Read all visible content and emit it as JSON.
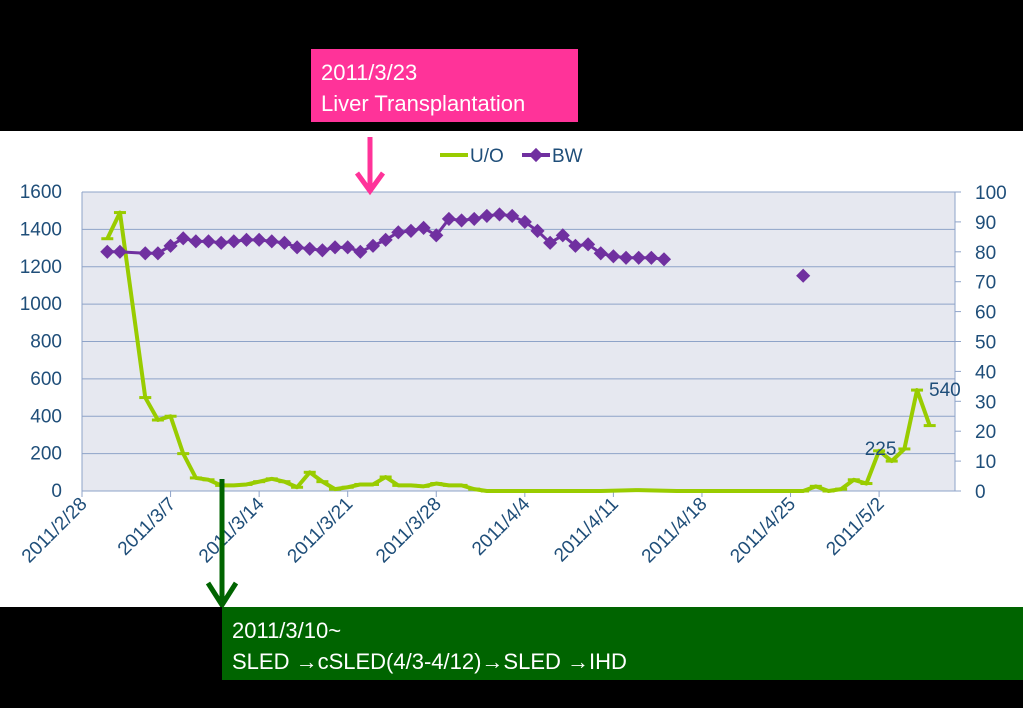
{
  "callouts": {
    "top": {
      "line1": "2011/3/23",
      "line2": "Liver Transplantation",
      "color": "#ff3399"
    },
    "bottom": {
      "line1": "2011/3/10~",
      "line2": "SLED →cSLED(4/3-4/12)→SLED →IHD",
      "color": "#006400"
    }
  },
  "chart_data": {
    "type": "line",
    "title": "",
    "xlabel": "",
    "ylabel_left": "",
    "ylabel_right": "",
    "x_ticks": [
      "2011/2/28",
      "2011/3/7",
      "2011/3/14",
      "2011/3/21",
      "2011/3/28",
      "2011/4/4",
      "2011/4/11",
      "2011/4/18",
      "2011/4/25",
      "2011/5/2"
    ],
    "x_range": [
      "2011/2/28",
      "2011/5/8"
    ],
    "y_left": {
      "range": [
        0,
        1600
      ],
      "ticks": [
        "0",
        "200",
        "400",
        "600",
        "800",
        "1000",
        "1200",
        "1400",
        "1600"
      ]
    },
    "y_right": {
      "range": [
        0,
        100
      ],
      "ticks": [
        "0",
        "10",
        "20",
        "30",
        "40",
        "50",
        "60",
        "70",
        "80",
        "90",
        "100"
      ]
    },
    "grid": true,
    "legend_position": "top",
    "background": "#e6e8f0",
    "series": [
      {
        "name": "U/O",
        "axis": "left",
        "color": "#99cc00",
        "marker": "bar",
        "points": [
          [
            "2011/3/2",
            1350
          ],
          [
            "2011/3/3",
            1490
          ],
          [
            "2011/3/5",
            500
          ],
          [
            "2011/3/6",
            380
          ],
          [
            "2011/3/7",
            400
          ],
          [
            "2011/3/8",
            200
          ],
          [
            "2011/3/9",
            70
          ],
          [
            "2011/3/10",
            60
          ],
          [
            "2011/3/11",
            30
          ],
          [
            "2011/3/12",
            30
          ],
          [
            "2011/3/13",
            35
          ],
          [
            "2011/3/14",
            50
          ],
          [
            "2011/3/15",
            65
          ],
          [
            "2011/3/16",
            50
          ],
          [
            "2011/3/17",
            20
          ],
          [
            "2011/3/18",
            100
          ],
          [
            "2011/3/19",
            50
          ],
          [
            "2011/3/20",
            10
          ],
          [
            "2011/3/21",
            20
          ],
          [
            "2011/3/22",
            35
          ],
          [
            "2011/3/23",
            35
          ],
          [
            "2011/3/24",
            75
          ],
          [
            "2011/3/25",
            30
          ],
          [
            "2011/3/26",
            30
          ],
          [
            "2011/3/27",
            25
          ],
          [
            "2011/3/28",
            40
          ],
          [
            "2011/3/29",
            30
          ],
          [
            "2011/3/30",
            30
          ],
          [
            "2011/3/31",
            10
          ],
          [
            "2011/4/1",
            0
          ],
          [
            "2011/4/4",
            0
          ],
          [
            "2011/4/10",
            0
          ],
          [
            "2011/4/13",
            5
          ],
          [
            "2011/4/16",
            0
          ],
          [
            "2011/4/20",
            0
          ],
          [
            "2011/4/26",
            0
          ],
          [
            "2011/4/27",
            25
          ],
          [
            "2011/4/28",
            0
          ],
          [
            "2011/4/29",
            10
          ],
          [
            "2011/4/30",
            60
          ],
          [
            "2011/5/1",
            40
          ],
          [
            "2011/5/2",
            215
          ],
          [
            "2011/5/3",
            160
          ],
          [
            "2011/5/4",
            225
          ],
          [
            "2011/5/5",
            540
          ],
          [
            "2011/5/6",
            350
          ]
        ]
      },
      {
        "name": "BW",
        "axis": "right",
        "color": "#7030a0",
        "marker": "diamond",
        "points": [
          [
            "2011/3/2",
            80
          ],
          [
            "2011/3/3",
            80
          ],
          [
            "2011/3/5",
            79.5
          ],
          [
            "2011/3/6",
            79.5
          ],
          [
            "2011/3/7",
            82
          ],
          [
            "2011/3/8",
            84.5
          ],
          [
            "2011/3/9",
            83.5
          ],
          [
            "2011/3/10",
            83.5
          ],
          [
            "2011/3/11",
            83
          ],
          [
            "2011/3/12",
            83.5
          ],
          [
            "2011/3/13",
            84
          ],
          [
            "2011/3/14",
            84
          ],
          [
            "2011/3/15",
            83.5
          ],
          [
            "2011/3/16",
            83
          ],
          [
            "2011/3/17",
            81.5
          ],
          [
            "2011/3/18",
            81
          ],
          [
            "2011/3/19",
            80.5
          ],
          [
            "2011/3/20",
            81.5
          ],
          [
            "2011/3/21",
            81.5
          ],
          [
            "2011/3/22",
            80
          ],
          [
            "2011/3/23",
            82
          ],
          [
            "2011/3/24",
            84
          ],
          [
            "2011/3/25",
            86.5
          ],
          [
            "2011/3/26",
            87
          ],
          [
            "2011/3/27",
            88
          ],
          [
            "2011/3/28",
            85.5
          ],
          [
            "2011/3/29",
            91
          ],
          [
            "2011/3/30",
            90.5
          ],
          [
            "2011/3/31",
            91
          ],
          [
            "2011/4/1",
            92
          ],
          [
            "2011/4/2",
            92.5
          ],
          [
            "2011/4/3",
            92
          ],
          [
            "2011/4/4",
            90
          ],
          [
            "2011/4/5",
            87
          ],
          [
            "2011/4/6",
            83
          ],
          [
            "2011/4/7",
            85.5
          ],
          [
            "2011/4/8",
            82
          ],
          [
            "2011/4/9",
            82.5
          ],
          [
            "2011/4/10",
            79.5
          ],
          [
            "2011/4/11",
            78.5
          ],
          [
            "2011/4/12",
            78
          ],
          [
            "2011/4/13",
            78
          ],
          [
            "2011/4/14",
            78
          ],
          [
            "2011/4/15",
            77.5
          ],
          [
            "2011/4/26",
            72
          ]
        ]
      }
    ],
    "data_labels": [
      {
        "series": "U/O",
        "date": "2011/5/4",
        "value": 225,
        "text": "225"
      },
      {
        "series": "U/O",
        "date": "2011/5/5",
        "value": 540,
        "text": "540"
      }
    ]
  }
}
